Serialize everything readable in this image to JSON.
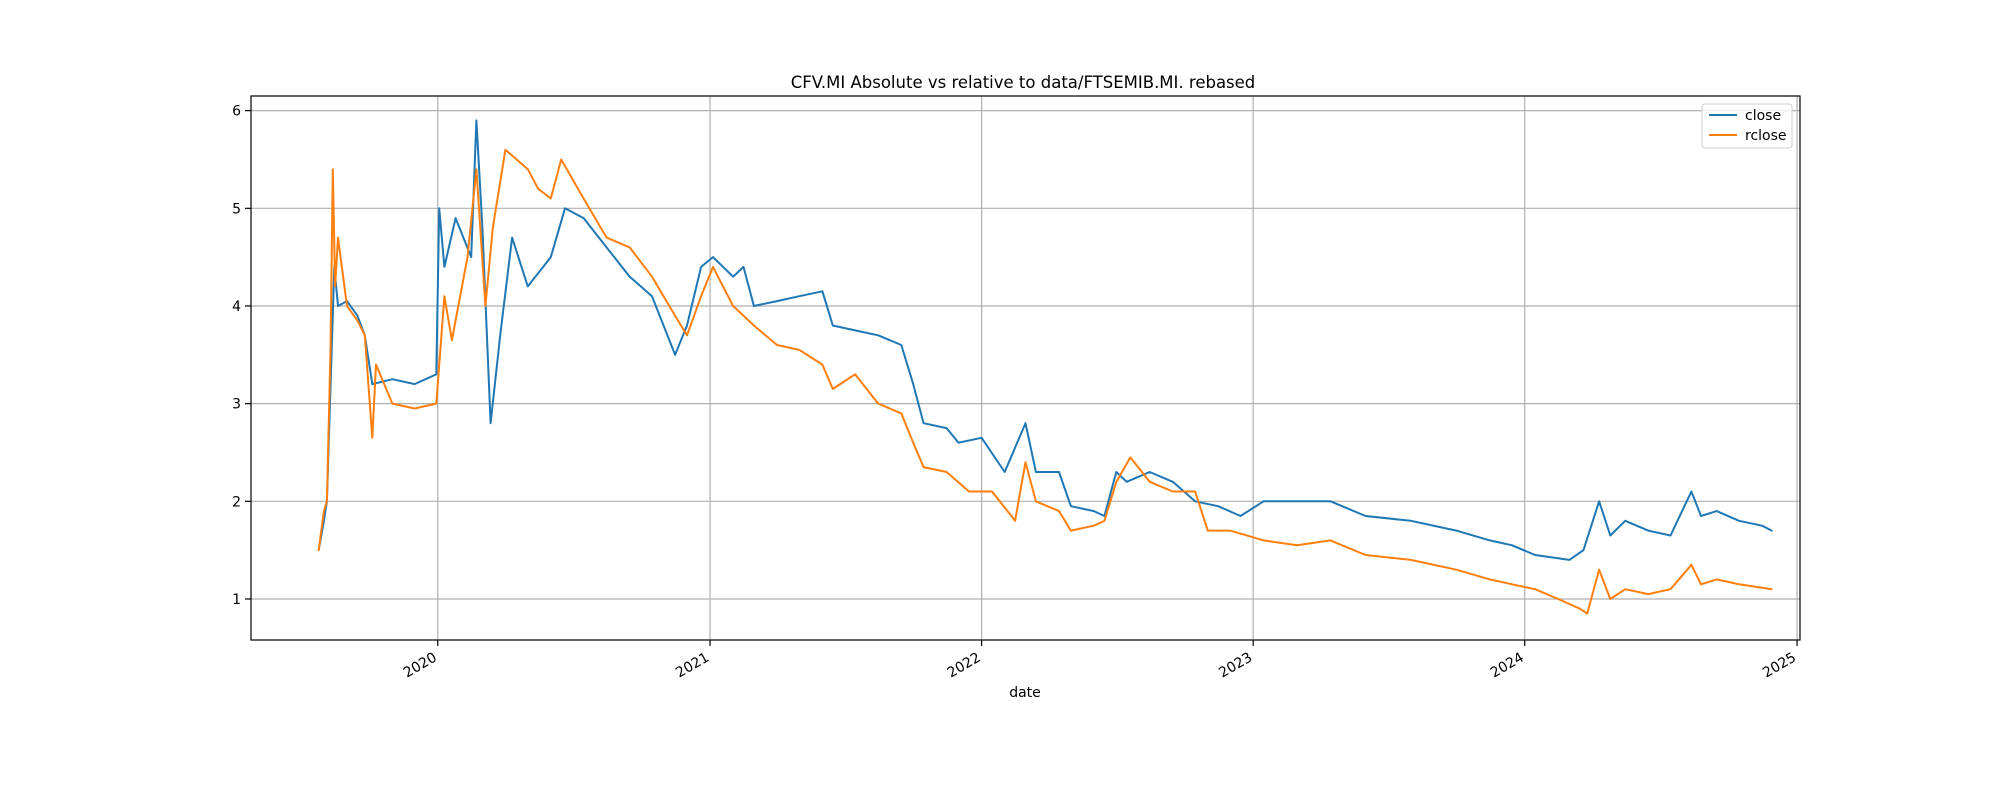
{
  "chart_data": {
    "type": "line",
    "title": "CFV.MI Absolute vs relative to data/FTSEMIB.MI. rebased",
    "xlabel": "date",
    "ylabel": "",
    "x_ticks": [
      "2020",
      "2021",
      "2022",
      "2023",
      "2024",
      "2025"
    ],
    "y_ticks": [
      1,
      2,
      3,
      4,
      5,
      6
    ],
    "xlim": [
      "2019-04-25",
      "2025-01-05"
    ],
    "ylim": [
      0.58,
      6.15
    ],
    "grid": true,
    "legend_position": "top-right",
    "series": [
      {
        "name": "close",
        "color": "#1f77b4",
        "points": [
          [
            "2019-07-25",
            1.5
          ],
          [
            "2019-08-01",
            1.8
          ],
          [
            "2019-08-05",
            2.0
          ],
          [
            "2019-08-10",
            3.2
          ],
          [
            "2019-08-15",
            4.4
          ],
          [
            "2019-08-20",
            4.0
          ],
          [
            "2019-09-01",
            4.05
          ],
          [
            "2019-09-15",
            3.9
          ],
          [
            "2019-09-25",
            3.7
          ],
          [
            "2019-10-05",
            3.2
          ],
          [
            "2019-11-01",
            3.25
          ],
          [
            "2019-12-01",
            3.2
          ],
          [
            "2019-12-30",
            3.3
          ],
          [
            "2020-01-03",
            5.0
          ],
          [
            "2020-01-10",
            4.4
          ],
          [
            "2020-01-25",
            4.9
          ],
          [
            "2020-02-15",
            4.5
          ],
          [
            "2020-02-22",
            5.9
          ],
          [
            "2020-03-01",
            4.8
          ],
          [
            "2020-03-12",
            2.8
          ],
          [
            "2020-03-25",
            3.7
          ],
          [
            "2020-04-10",
            4.7
          ],
          [
            "2020-05-01",
            4.2
          ],
          [
            "2020-06-01",
            4.5
          ],
          [
            "2020-06-20",
            5.0
          ],
          [
            "2020-07-15",
            4.9
          ],
          [
            "2020-08-15",
            4.6
          ],
          [
            "2020-09-15",
            4.3
          ],
          [
            "2020-10-15",
            4.1
          ],
          [
            "2020-11-15",
            3.5
          ],
          [
            "2020-12-01",
            3.8
          ],
          [
            "2020-12-20",
            4.4
          ],
          [
            "2021-01-05",
            4.5
          ],
          [
            "2021-02-01",
            4.3
          ],
          [
            "2021-02-15",
            4.4
          ],
          [
            "2021-03-01",
            4.0
          ],
          [
            "2021-04-01",
            4.05
          ],
          [
            "2021-05-01",
            4.1
          ],
          [
            "2021-06-01",
            4.15
          ],
          [
            "2021-06-15",
            3.8
          ],
          [
            "2021-07-15",
            3.75
          ],
          [
            "2021-08-15",
            3.7
          ],
          [
            "2021-09-15",
            3.6
          ],
          [
            "2021-10-01",
            3.2
          ],
          [
            "2021-10-15",
            2.8
          ],
          [
            "2021-11-15",
            2.75
          ],
          [
            "2021-12-01",
            2.6
          ],
          [
            "2022-01-01",
            2.65
          ],
          [
            "2022-02-01",
            2.3
          ],
          [
            "2022-03-01",
            2.8
          ],
          [
            "2022-03-15",
            2.3
          ],
          [
            "2022-04-15",
            2.3
          ],
          [
            "2022-05-01",
            1.95
          ],
          [
            "2022-06-01",
            1.9
          ],
          [
            "2022-06-15",
            1.85
          ],
          [
            "2022-07-01",
            2.3
          ],
          [
            "2022-07-15",
            2.2
          ],
          [
            "2022-08-15",
            2.3
          ],
          [
            "2022-09-15",
            2.2
          ],
          [
            "2022-10-15",
            2.0
          ],
          [
            "2022-11-15",
            1.95
          ],
          [
            "2022-12-15",
            1.85
          ],
          [
            "2023-01-15",
            2.0
          ],
          [
            "2023-03-01",
            2.0
          ],
          [
            "2023-04-15",
            2.0
          ],
          [
            "2023-06-01",
            1.85
          ],
          [
            "2023-08-01",
            1.8
          ],
          [
            "2023-10-01",
            1.7
          ],
          [
            "2023-11-15",
            1.6
          ],
          [
            "2023-12-15",
            1.55
          ],
          [
            "2024-01-15",
            1.45
          ],
          [
            "2024-03-01",
            1.4
          ],
          [
            "2024-03-20",
            1.5
          ],
          [
            "2024-04-10",
            2.0
          ],
          [
            "2024-04-25",
            1.65
          ],
          [
            "2024-05-15",
            1.8
          ],
          [
            "2024-06-15",
            1.7
          ],
          [
            "2024-07-15",
            1.65
          ],
          [
            "2024-08-12",
            2.1
          ],
          [
            "2024-08-25",
            1.85
          ],
          [
            "2024-09-15",
            1.9
          ],
          [
            "2024-10-15",
            1.8
          ],
          [
            "2024-11-15",
            1.75
          ],
          [
            "2024-11-28",
            1.7
          ]
        ]
      },
      {
        "name": "rclose",
        "color": "#ff7f0e",
        "points": [
          [
            "2019-07-25",
            1.5
          ],
          [
            "2019-08-01",
            1.9
          ],
          [
            "2019-08-05",
            2.0
          ],
          [
            "2019-08-10",
            3.6
          ],
          [
            "2019-08-13",
            5.4
          ],
          [
            "2019-08-16",
            4.2
          ],
          [
            "2019-08-20",
            4.7
          ],
          [
            "2019-09-01",
            4.0
          ],
          [
            "2019-09-15",
            3.85
          ],
          [
            "2019-09-25",
            3.7
          ],
          [
            "2019-10-05",
            2.65
          ],
          [
            "2019-10-10",
            3.4
          ],
          [
            "2019-11-01",
            3.0
          ],
          [
            "2019-12-01",
            2.95
          ],
          [
            "2019-12-30",
            3.0
          ],
          [
            "2020-01-10",
            4.1
          ],
          [
            "2020-01-20",
            3.65
          ],
          [
            "2020-02-10",
            4.5
          ],
          [
            "2020-02-22",
            5.4
          ],
          [
            "2020-03-05",
            4.0
          ],
          [
            "2020-03-15",
            4.8
          ],
          [
            "2020-04-01",
            5.6
          ],
          [
            "2020-05-01",
            5.4
          ],
          [
            "2020-05-15",
            5.2
          ],
          [
            "2020-06-01",
            5.1
          ],
          [
            "2020-06-15",
            5.5
          ],
          [
            "2020-07-15",
            5.1
          ],
          [
            "2020-08-15",
            4.7
          ],
          [
            "2020-09-15",
            4.6
          ],
          [
            "2020-10-15",
            4.3
          ],
          [
            "2020-11-15",
            3.9
          ],
          [
            "2020-12-01",
            3.7
          ],
          [
            "2020-12-20",
            4.1
          ],
          [
            "2021-01-05",
            4.4
          ],
          [
            "2021-02-01",
            4.0
          ],
          [
            "2021-03-01",
            3.8
          ],
          [
            "2021-04-01",
            3.6
          ],
          [
            "2021-05-01",
            3.55
          ],
          [
            "2021-06-01",
            3.4
          ],
          [
            "2021-06-15",
            3.15
          ],
          [
            "2021-07-15",
            3.3
          ],
          [
            "2021-08-15",
            3.0
          ],
          [
            "2021-09-15",
            2.9
          ],
          [
            "2021-10-01",
            2.6
          ],
          [
            "2021-10-15",
            2.35
          ],
          [
            "2021-11-15",
            2.3
          ],
          [
            "2021-12-15",
            2.1
          ],
          [
            "2022-01-15",
            2.1
          ],
          [
            "2022-02-15",
            1.8
          ],
          [
            "2022-03-01",
            2.4
          ],
          [
            "2022-03-15",
            2.0
          ],
          [
            "2022-04-15",
            1.9
          ],
          [
            "2022-05-01",
            1.7
          ],
          [
            "2022-06-01",
            1.75
          ],
          [
            "2022-06-15",
            1.8
          ],
          [
            "2022-07-01",
            2.2
          ],
          [
            "2022-07-20",
            2.45
          ],
          [
            "2022-08-15",
            2.2
          ],
          [
            "2022-09-15",
            2.1
          ],
          [
            "2022-10-15",
            2.1
          ],
          [
            "2022-11-01",
            1.7
          ],
          [
            "2022-12-01",
            1.7
          ],
          [
            "2023-01-15",
            1.6
          ],
          [
            "2023-03-01",
            1.55
          ],
          [
            "2023-04-15",
            1.6
          ],
          [
            "2023-06-01",
            1.45
          ],
          [
            "2023-08-01",
            1.4
          ],
          [
            "2023-10-01",
            1.3
          ],
          [
            "2023-11-15",
            1.2
          ],
          [
            "2023-12-15",
            1.15
          ],
          [
            "2024-01-15",
            1.1
          ],
          [
            "2024-02-15",
            1.0
          ],
          [
            "2024-03-15",
            0.9
          ],
          [
            "2024-03-25",
            0.85
          ],
          [
            "2024-04-10",
            1.3
          ],
          [
            "2024-04-25",
            1.0
          ],
          [
            "2024-05-15",
            1.1
          ],
          [
            "2024-06-15",
            1.05
          ],
          [
            "2024-07-15",
            1.1
          ],
          [
            "2024-08-12",
            1.35
          ],
          [
            "2024-08-25",
            1.15
          ],
          [
            "2024-09-15",
            1.2
          ],
          [
            "2024-10-15",
            1.15
          ],
          [
            "2024-11-28",
            1.1
          ]
        ]
      }
    ]
  }
}
